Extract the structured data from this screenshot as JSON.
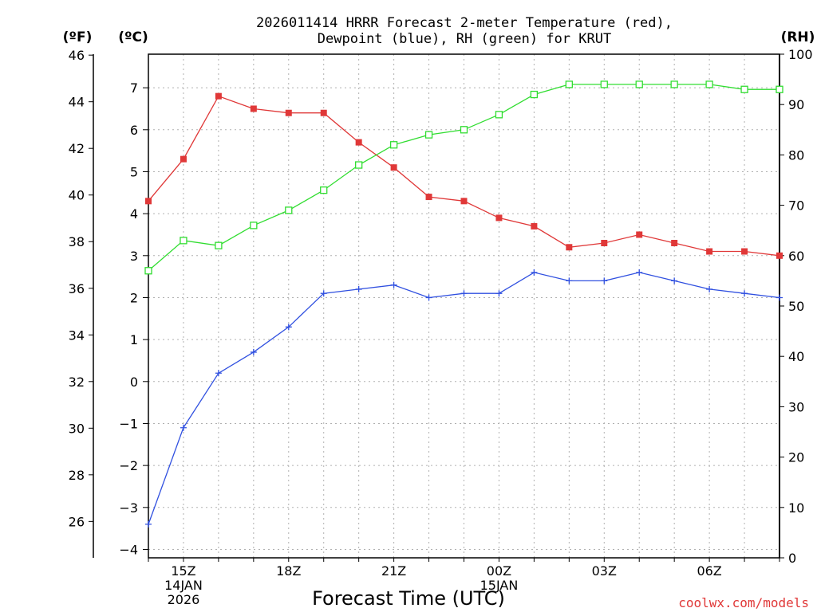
{
  "chart_data": {
    "type": "line",
    "title_line1": "2026011414 HRRR Forecast 2-meter Temperature (red),",
    "title_line2": "Dewpoint (blue), RH (green) for KRUT",
    "xlabel": "Forecast Time (UTC)",
    "left_axis_f_label": "(ºF)",
    "left_axis_c_label": "(ºC)",
    "right_axis_label": "(RH)",
    "credit": "coolwx.com/models",
    "x_hours": [
      14,
      15,
      16,
      17,
      18,
      19,
      20,
      21,
      22,
      23,
      24,
      25,
      26,
      27,
      28,
      29,
      30,
      31,
      32
    ],
    "x_tick_labels": [
      {
        "hour": 15,
        "lines": [
          "15Z",
          "14JAN",
          "2026"
        ]
      },
      {
        "hour": 18,
        "lines": [
          "18Z"
        ]
      },
      {
        "hour": 21,
        "lines": [
          "21Z"
        ]
      },
      {
        "hour": 24,
        "lines": [
          "00Z",
          "15JAN"
        ]
      },
      {
        "hour": 27,
        "lines": [
          "03Z"
        ]
      },
      {
        "hour": 30,
        "lines": [
          "06Z"
        ]
      }
    ],
    "ylim_c": [
      -4.2,
      7.8
    ],
    "ylim_rh": [
      0,
      100
    ],
    "y_ticks_c": [
      -4,
      -3,
      -2,
      -1,
      0,
      1,
      2,
      3,
      4,
      5,
      6,
      7
    ],
    "y_ticks_f": [
      26,
      28,
      30,
      32,
      34,
      36,
      38,
      40,
      42,
      44,
      46
    ],
    "y_ticks_rh": [
      0,
      10,
      20,
      30,
      40,
      50,
      60,
      70,
      80,
      90,
      100
    ],
    "series": [
      {
        "name": "Temperature",
        "color": "#e03838",
        "marker": "filled-square",
        "values": [
          4.3,
          5.3,
          6.8,
          6.5,
          6.4,
          6.4,
          5.7,
          5.1,
          4.4,
          4.3,
          3.9,
          3.7,
          3.2,
          3.3,
          3.5,
          3.3,
          3.1,
          3.1,
          3.0
        ]
      },
      {
        "name": "Dewpoint",
        "color": "#3050e0",
        "marker": "plus",
        "values": [
          -3.4,
          -1.1,
          0.2,
          0.7,
          1.3,
          2.1,
          2.2,
          2.3,
          2.0,
          2.1,
          2.1,
          2.6,
          2.4,
          2.4,
          2.6,
          2.4,
          2.2,
          2.1,
          2.0
        ]
      },
      {
        "name": "RH",
        "color": "#30dd30",
        "marker": "open-square",
        "values": [
          57,
          63,
          62,
          66,
          69,
          73,
          78,
          82,
          84,
          85,
          88,
          92,
          94,
          94,
          94,
          94,
          94,
          93,
          93
        ]
      }
    ]
  }
}
